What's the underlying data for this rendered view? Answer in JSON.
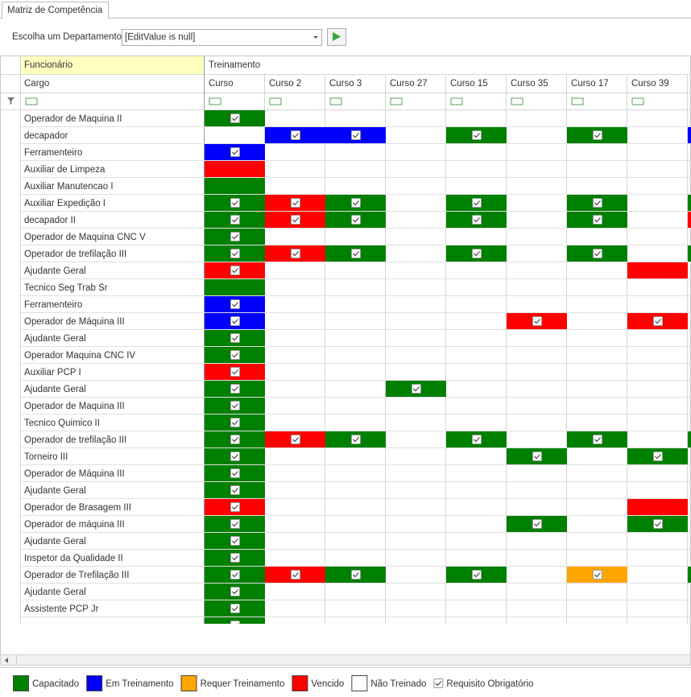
{
  "tab": "Matriz de Competência",
  "toolbar": {
    "label": "Escolha um Departamento",
    "value": "[EditValue is null]"
  },
  "grid": {
    "group_headers": [
      "Funcionário",
      "Treinamento"
    ],
    "row_header": "Cargo",
    "columns": [
      "Curso",
      "Curso 2",
      "Curso 3",
      "Curso 27",
      "Curso 15",
      "Curso 35",
      "Curso 17",
      "Curso 39",
      null
    ],
    "rows": [
      {
        "name": "Operador de Maquina II",
        "status": [
          0,
          null,
          null,
          null,
          null,
          null,
          null,
          null,
          null
        ],
        "checked": [
          0
        ]
      },
      {
        "name": "decapador",
        "status": [
          null,
          1,
          1,
          null,
          0,
          null,
          0,
          null,
          1
        ],
        "checked": [
          1,
          2,
          4,
          6
        ]
      },
      {
        "name": "Ferramenteiro",
        "status": [
          1,
          null,
          null,
          null,
          null,
          null,
          null,
          null,
          null
        ],
        "checked": [
          0
        ]
      },
      {
        "name": "Auxiliar de Limpeza",
        "status": [
          3,
          null,
          null,
          null,
          null,
          null,
          null,
          null,
          null
        ],
        "checked": []
      },
      {
        "name": "Auxiliar Manutencao I",
        "status": [
          0,
          null,
          null,
          null,
          null,
          null,
          null,
          null,
          null
        ],
        "checked": []
      },
      {
        "name": "Auxiliar Expedição I",
        "status": [
          0,
          3,
          0,
          null,
          0,
          null,
          0,
          null,
          0
        ],
        "checked": [
          0,
          1,
          2,
          4,
          6
        ]
      },
      {
        "name": "decapador II",
        "status": [
          0,
          3,
          0,
          null,
          0,
          null,
          0,
          null,
          3
        ],
        "checked": [
          0,
          1,
          2,
          4,
          6
        ]
      },
      {
        "name": "Operador de Maquina CNC V",
        "status": [
          0,
          null,
          null,
          null,
          null,
          null,
          null,
          null,
          null
        ],
        "checked": [
          0
        ]
      },
      {
        "name": "Operador de trefilação III",
        "status": [
          0,
          3,
          0,
          null,
          0,
          null,
          0,
          null,
          0
        ],
        "checked": [
          0,
          1,
          2,
          4,
          6
        ]
      },
      {
        "name": "Ajudante Geral",
        "status": [
          3,
          null,
          null,
          null,
          null,
          null,
          null,
          3,
          null
        ],
        "checked": [
          0
        ]
      },
      {
        "name": "Tecnico Seg Trab Sr",
        "status": [
          0,
          null,
          null,
          null,
          null,
          null,
          null,
          null,
          null
        ],
        "checked": []
      },
      {
        "name": "Ferramenteiro",
        "status": [
          1,
          null,
          null,
          null,
          null,
          null,
          null,
          null,
          null
        ],
        "checked": [
          0
        ]
      },
      {
        "name": "Operador de Máquina III",
        "status": [
          1,
          null,
          null,
          null,
          null,
          3,
          null,
          3,
          null
        ],
        "checked": [
          0,
          5,
          7
        ]
      },
      {
        "name": "Ajudante Geral",
        "status": [
          0,
          null,
          null,
          null,
          null,
          null,
          null,
          null,
          null
        ],
        "checked": [
          0
        ]
      },
      {
        "name": "Operador Maquina CNC IV",
        "status": [
          0,
          null,
          null,
          null,
          null,
          null,
          null,
          null,
          null
        ],
        "checked": [
          0
        ]
      },
      {
        "name": "Auxiliar PCP I",
        "status": [
          3,
          null,
          null,
          null,
          null,
          null,
          null,
          null,
          null
        ],
        "checked": [
          0
        ]
      },
      {
        "name": "Ajudante Geral",
        "status": [
          0,
          null,
          null,
          0,
          null,
          null,
          null,
          null,
          null
        ],
        "checked": [
          0,
          3
        ]
      },
      {
        "name": "Operador de Maquina III",
        "status": [
          0,
          null,
          null,
          null,
          null,
          null,
          null,
          null,
          null
        ],
        "checked": [
          0
        ]
      },
      {
        "name": "Tecnico Quimico II",
        "status": [
          0,
          null,
          null,
          null,
          null,
          null,
          null,
          null,
          null
        ],
        "checked": [
          0
        ]
      },
      {
        "name": "Operador de trefilação III",
        "status": [
          0,
          3,
          0,
          null,
          0,
          null,
          0,
          null,
          0
        ],
        "checked": [
          0,
          1,
          2,
          4,
          6
        ]
      },
      {
        "name": "Torneiro III",
        "status": [
          0,
          null,
          null,
          null,
          null,
          0,
          null,
          0,
          null
        ],
        "checked": [
          0,
          5,
          7
        ]
      },
      {
        "name": "Operador de Máquina III",
        "status": [
          0,
          null,
          null,
          null,
          null,
          null,
          null,
          null,
          null
        ],
        "checked": [
          0
        ]
      },
      {
        "name": "Ajudante Geral",
        "status": [
          0,
          null,
          null,
          null,
          null,
          null,
          null,
          null,
          null
        ],
        "checked": [
          0
        ]
      },
      {
        "name": "Operador de Brasagem III",
        "status": [
          3,
          null,
          null,
          null,
          null,
          null,
          null,
          3,
          null
        ],
        "checked": [
          0
        ]
      },
      {
        "name": "Operador de máquina III",
        "status": [
          0,
          null,
          null,
          null,
          null,
          0,
          null,
          0,
          null
        ],
        "checked": [
          0,
          5,
          7
        ]
      },
      {
        "name": "Ajudante Geral",
        "status": [
          0,
          null,
          null,
          null,
          null,
          null,
          null,
          null,
          null
        ],
        "checked": [
          0
        ]
      },
      {
        "name": "Inspetor da Qualidade II",
        "status": [
          0,
          null,
          null,
          null,
          null,
          null,
          null,
          null,
          null
        ],
        "checked": [
          0
        ]
      },
      {
        "name": "Operador de Trefilação III",
        "status": [
          0,
          3,
          0,
          null,
          0,
          null,
          2,
          null,
          0
        ],
        "checked": [
          0,
          1,
          2,
          4,
          6
        ]
      },
      {
        "name": "Ajudante Geral",
        "status": [
          0,
          null,
          null,
          null,
          null,
          null,
          null,
          null,
          null
        ],
        "checked": [
          0
        ]
      },
      {
        "name": "Assistente PCP Jr",
        "status": [
          0,
          null,
          null,
          null,
          null,
          null,
          null,
          null,
          null
        ],
        "checked": [
          0
        ]
      },
      {
        "name": null,
        "status": [
          0,
          null,
          null,
          null,
          null,
          null,
          null,
          null,
          null
        ],
        "checked": [
          0
        ]
      }
    ]
  },
  "legend": {
    "items": [
      {
        "label": "Capacitado",
        "color": "#008000"
      },
      {
        "label": "Em Treinamento",
        "color": "#0000ff"
      },
      {
        "label": "Requer Treinamento",
        "color": "#ffa500"
      },
      {
        "label": "Vencido",
        "color": "#ff0000"
      },
      {
        "label": "Não Treinado",
        "color": "#ffffff"
      }
    ],
    "check_label": "Requisito Obrigatório"
  }
}
